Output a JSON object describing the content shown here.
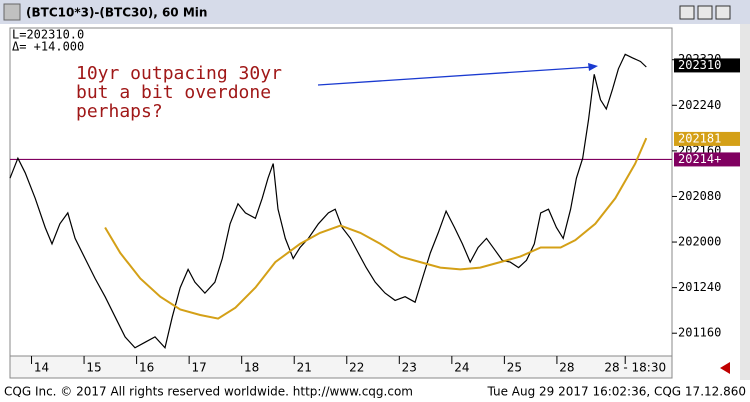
{
  "chart_data": {
    "type": "line",
    "title": "(BTC10*3)-(BTC30), 60 Min",
    "info": [
      "L=202310.0",
      "Δ= +14.000"
    ],
    "annotation": [
      "10yr outpacing 30yr",
      "but a bit overdone",
      "perhaps?"
    ],
    "footer_left": "CQG Inc. © 2017 All rights reserved worldwide. http://www.cqg.com",
    "footer_right": "Tue Aug 29 2017 16:02:36, CQG 17.12.860",
    "xlim": [
      0,
      12.6
    ],
    "xticks": [
      {
        "value": 0.6,
        "label": "14"
      },
      {
        "value": 1.6,
        "label": "15"
      },
      {
        "value": 2.6,
        "label": "16"
      },
      {
        "value": 3.6,
        "label": "17"
      },
      {
        "value": 4.6,
        "label": "18"
      },
      {
        "value": 5.6,
        "label": "21"
      },
      {
        "value": 6.6,
        "label": "22"
      },
      {
        "value": 7.6,
        "label": "23"
      },
      {
        "value": 8.6,
        "label": "24"
      },
      {
        "value": 9.6,
        "label": "25"
      },
      {
        "value": 10.6,
        "label": "28"
      },
      {
        "value": 11.9,
        "label": "28 - 18:30"
      }
    ],
    "ylim": [
      201.375,
      203.174
    ],
    "yticks": [
      {
        "value": 201.5,
        "label": "201160"
      },
      {
        "value": 201.75,
        "label": "201240"
      },
      {
        "value": 202.0,
        "label": "202000"
      },
      {
        "value": 202.25,
        "label": "202080"
      },
      {
        "value": 202.5,
        "label": "202160"
      },
      {
        "value": 202.75,
        "label": "202240"
      },
      {
        "value": 203.0,
        "label": "202320"
      }
    ],
    "series": [
      {
        "color": "#000000",
        "x": [
          0,
          0.15,
          0.29,
          0.48,
          0.67,
          0.8,
          0.95,
          1.1,
          1.24,
          1.43,
          1.62,
          1.81,
          2.0,
          2.19,
          2.38,
          2.57,
          2.76,
          2.95,
          3.09,
          3.24,
          3.39,
          3.52,
          3.71,
          3.9,
          4.04,
          4.19,
          4.34,
          4.48,
          4.67,
          4.8,
          4.91,
          5.01,
          5.1,
          5.24,
          5.39,
          5.52,
          5.68,
          5.87,
          6.06,
          6.19,
          6.32,
          6.48,
          6.63,
          6.78,
          6.95,
          7.14,
          7.33,
          7.52,
          7.71,
          7.85,
          8.0,
          8.15,
          8.3,
          8.46,
          8.61,
          8.76,
          8.91,
          9.07,
          9.22,
          9.37,
          9.52,
          9.68,
          9.83,
          9.98,
          10.1,
          10.25,
          10.4,
          10.53,
          10.67,
          10.78,
          10.9,
          11.01,
          11.12,
          11.24,
          11.35,
          11.47,
          11.58,
          11.71,
          11.85,
          12.0,
          12.11
        ],
        "values": [
          202.35,
          202.46,
          202.38,
          202.24,
          202.08,
          201.99,
          202.1,
          202.16,
          202.02,
          201.91,
          201.8,
          201.7,
          201.59,
          201.48,
          201.42,
          201.45,
          201.48,
          201.42,
          201.59,
          201.75,
          201.85,
          201.78,
          201.72,
          201.78,
          201.91,
          202.1,
          202.21,
          202.16,
          202.13,
          202.24,
          202.35,
          202.43,
          202.18,
          202.02,
          201.91,
          201.97,
          202.02,
          202.1,
          202.16,
          202.18,
          202.08,
          202.02,
          201.94,
          201.86,
          201.78,
          201.72,
          201.68,
          201.7,
          201.67,
          201.8,
          201.94,
          202.05,
          202.17,
          202.08,
          201.99,
          201.89,
          201.97,
          202.02,
          201.96,
          201.9,
          201.89,
          201.86,
          201.9,
          201.99,
          202.16,
          202.18,
          202.08,
          202.02,
          202.18,
          202.35,
          202.46,
          202.67,
          202.92,
          202.78,
          202.73,
          202.84,
          202.95,
          203.03,
          203.01,
          202.99,
          202.96
        ]
      },
      {
        "color": "#d4a017",
        "x": [
          1.81,
          2.1,
          2.48,
          2.86,
          3.24,
          3.62,
          3.96,
          4.29,
          4.67,
          5.05,
          5.52,
          5.9,
          6.29,
          6.67,
          7.05,
          7.43,
          7.81,
          8.19,
          8.57,
          8.95,
          9.33,
          9.71,
          10.1,
          10.48,
          10.76,
          11.14,
          11.52,
          11.9,
          12.11
        ],
        "values": [
          202.08,
          201.94,
          201.8,
          201.7,
          201.63,
          201.6,
          201.58,
          201.64,
          201.75,
          201.89,
          201.99,
          202.05,
          202.09,
          202.05,
          201.99,
          201.92,
          201.89,
          201.86,
          201.85,
          201.86,
          201.89,
          201.92,
          201.97,
          201.97,
          202.01,
          202.1,
          202.24,
          202.43,
          202.57
        ]
      }
    ],
    "markers": [
      {
        "value": 202.96875,
        "label": "202310",
        "color": "#000000"
      },
      {
        "value": 202.565625,
        "label": "202181",
        "color": "#d4a017"
      },
      {
        "value": 202.453125,
        "label": "20214+",
        "color": "#800060"
      }
    ],
    "hline_marker": 2
  }
}
